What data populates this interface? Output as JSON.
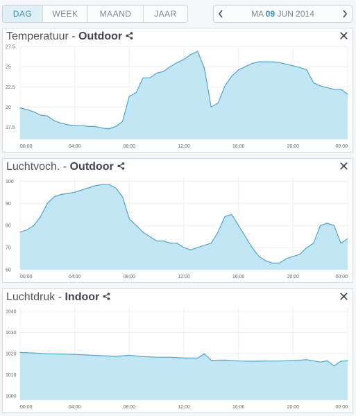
{
  "tabs": [
    {
      "label": "DAG",
      "active": true
    },
    {
      "label": "WEEK",
      "active": false
    },
    {
      "label": "MAAND",
      "active": false
    },
    {
      "label": "JAAR",
      "active": false
    }
  ],
  "date_nav": {
    "prev_icon": "chevron-left-icon",
    "next_icon": "chevron-right-icon",
    "day": "MA",
    "date_num": "09",
    "month_year": "JUN 2014"
  },
  "panels": [
    {
      "title": "Temperatuur - ",
      "location": "Outdoor",
      "share_icon": "share-icon",
      "close_icon": "close-icon",
      "close_label": "✕"
    },
    {
      "title": "Luchtvoch. - ",
      "location": "Outdoor",
      "share_icon": "share-icon",
      "close_icon": "close-icon",
      "close_label": "✕"
    },
    {
      "title": "Luchtdruk - ",
      "location": "Indoor",
      "share_icon": "share-icon",
      "close_icon": "close-icon",
      "close_label": "✕"
    }
  ],
  "colors": {
    "fill": "#c3e6f5",
    "line": "#49a7d3",
    "grid": "#eef1f2",
    "accent": "#3d8db6"
  },
  "chart_data": [
    {
      "type": "area",
      "x_ticks": [
        "00:00",
        "04:00",
        "08:00",
        "12:00",
        "16:00",
        "20:00",
        "00:00"
      ],
      "y_ticks": [
        17.5,
        20,
        22.5,
        25,
        27.5
      ],
      "ylim": [
        16,
        27.5
      ],
      "xlim": [
        0,
        24
      ],
      "grid": true,
      "x": [
        0,
        0.5,
        1,
        1.5,
        2,
        2.5,
        3,
        3.5,
        4,
        4.5,
        5,
        5.5,
        6,
        6.5,
        7,
        7.5,
        8,
        8.5,
        9,
        9.5,
        10,
        10.5,
        11,
        11.5,
        12,
        12.5,
        13,
        13.5,
        14,
        14.5,
        15,
        15.5,
        16,
        16.5,
        17,
        17.5,
        18,
        18.5,
        19,
        19.5,
        20,
        20.5,
        21,
        21.5,
        22,
        22.5,
        23,
        23.5,
        24
      ],
      "y": [
        19.9,
        19.7,
        19.4,
        19.0,
        18.9,
        18.3,
        18.0,
        17.8,
        17.7,
        17.7,
        17.6,
        17.6,
        17.4,
        17.3,
        17.6,
        18.2,
        21.3,
        21.8,
        23.6,
        23.6,
        24.2,
        24.4,
        25.0,
        25.5,
        25.9,
        26.5,
        26.9,
        24.8,
        20.0,
        20.5,
        22.6,
        23.8,
        24.6,
        25.0,
        25.4,
        25.6,
        25.6,
        25.6,
        25.5,
        25.3,
        25.1,
        24.9,
        24.6,
        23.0,
        22.6,
        22.4,
        22.2,
        22.2,
        21.6
      ]
    },
    {
      "type": "area",
      "x_ticks": [
        "00:00",
        "04:00",
        "08:00",
        "12:00",
        "16:00",
        "20:00",
        "00:00"
      ],
      "y_ticks": [
        60,
        70,
        80,
        90,
        100
      ],
      "ylim": [
        60,
        102
      ],
      "xlim": [
        0,
        24
      ],
      "grid": true,
      "x": [
        0,
        0.5,
        1,
        1.5,
        2,
        2.5,
        3,
        3.5,
        4,
        4.5,
        5,
        5.5,
        6,
        6.5,
        7,
        7.5,
        8,
        8.5,
        9,
        9.5,
        10,
        10.5,
        11,
        11.5,
        12,
        12.5,
        13,
        13.5,
        14,
        14.5,
        15,
        15.5,
        16,
        16.5,
        17,
        17.5,
        18,
        18.5,
        19,
        19.5,
        20,
        20.5,
        21,
        21.5,
        22,
        22.5,
        23,
        23.5,
        24
      ],
      "y": [
        77,
        78,
        80,
        84,
        90,
        93,
        94,
        94.5,
        95,
        96,
        97,
        98,
        98.5,
        98.5,
        97,
        93,
        83,
        80,
        77,
        75,
        73,
        73,
        72,
        72,
        70,
        69,
        70,
        71,
        72,
        77,
        84,
        85,
        80,
        75,
        70,
        66,
        64,
        63,
        63,
        65,
        66,
        67,
        70,
        72,
        80,
        81,
        80,
        72,
        74
      ]
    },
    {
      "type": "area",
      "x_ticks": [
        "00:00",
        "04:00",
        "08:00",
        "12:00",
        "16:00",
        "20:00",
        "00:00"
      ],
      "y_ticks": [
        1000,
        1010,
        1020,
        1030,
        1040
      ],
      "ylim": [
        998,
        1042
      ],
      "xlim": [
        0,
        24
      ],
      "grid": true,
      "x": [
        0,
        1,
        2,
        3,
        4,
        5,
        6,
        7,
        8,
        9,
        10,
        11,
        12,
        13,
        13.5,
        14,
        15,
        16,
        17,
        18,
        19,
        20,
        21,
        22,
        22.5,
        23,
        23.5,
        24
      ],
      "y": [
        1020.5,
        1020.3,
        1019.9,
        1019.8,
        1019.6,
        1019.3,
        1019.0,
        1018.7,
        1019.2,
        1018.6,
        1018.3,
        1018.3,
        1017.9,
        1017.9,
        1019.9,
        1016.8,
        1016.9,
        1016.5,
        1016.4,
        1016.5,
        1016.5,
        1016.7,
        1017.1,
        1016.0,
        1016.6,
        1014.2,
        1016.4,
        1016.6
      ]
    }
  ]
}
